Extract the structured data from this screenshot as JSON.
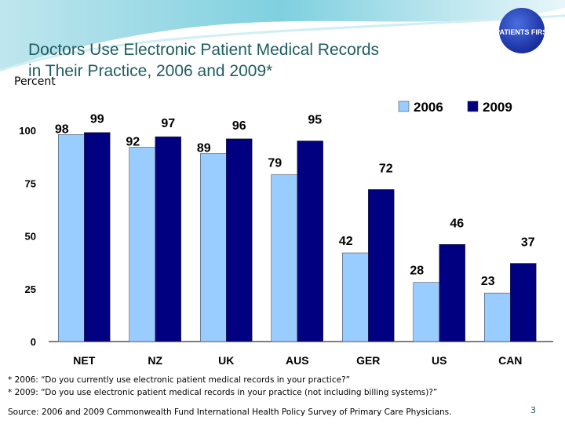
{
  "slide": {
    "title_line1": "Doctors Use Electronic Patient Medical Records",
    "title_line2": "in Their Practice, 2006 and 2009*",
    "logo_text": "PATIENTS FIRST",
    "page_number": "3"
  },
  "footnotes": [
    "* 2006: “Do you currently use electronic patient medical records in your practice?”",
    "* 2009: “Do you use electronic patient medical records in your practice (not including billing systems)?”"
  ],
  "source": "Source: 2006 and 2009 Commonwealth Fund International Health Policy Survey of Primary Care Physicians.",
  "chart_data": {
    "type": "bar",
    "ylabel": "Percent",
    "categories": [
      "NET",
      "NZ",
      "UK",
      "AUS",
      "GER",
      "US",
      "CAN"
    ],
    "series": [
      {
        "name": "2006",
        "values": [
          98,
          92,
          89,
          79,
          42,
          28,
          23
        ],
        "color": "#99ccff"
      },
      {
        "name": "2009",
        "values": [
          99,
          97,
          96,
          95,
          72,
          46,
          37
        ],
        "color": "#000080"
      }
    ],
    "ylim": [
      0,
      100
    ],
    "yticks": [
      0,
      25,
      50,
      75,
      100
    ],
    "legend": "top-right",
    "grid": false
  }
}
